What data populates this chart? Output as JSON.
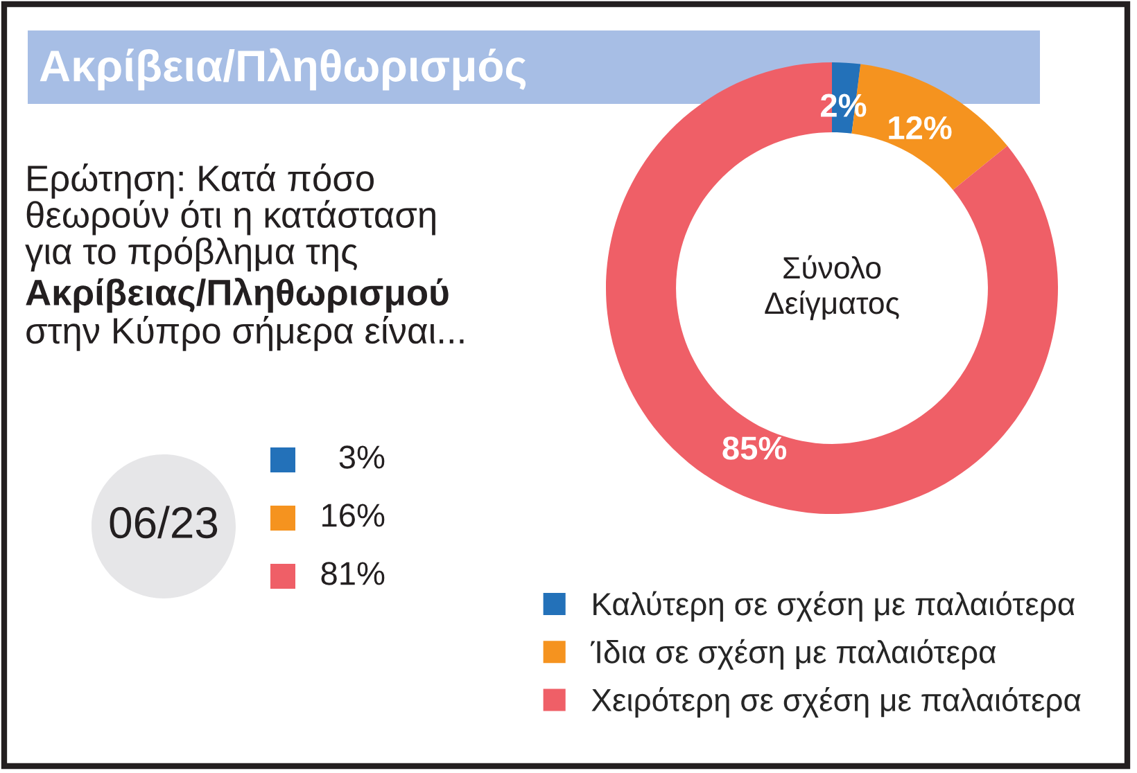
{
  "chart_data": [
    {
      "type": "other",
      "title": "Ακρίβεια/Πληθωρισμός",
      "annotations": [
        "Ερώτηση: Κατά πόσο\nθεωρούν ότι η κατάσταση\nγια το πρόβλημα της",
        "Ακρίβειας/Πληθωρισμού",
        "στην Κύπρο σήμερα είναι..."
      ]
    },
    {
      "type": "donut",
      "categories": [
        "Καλύτερη σε σχέση με παλαιότερα",
        "Ίδια σε σχέση με παλαιότερα",
        "Χειρότερη σε σχέση με παλαιότερα"
      ],
      "values": [
        2,
        12,
        85
      ],
      "colors": [
        "#2371b9",
        "#f5931f",
        "#ef5f67"
      ],
      "value_labels": [
        "2%",
        "12%",
        "85%"
      ],
      "legend": "bottom right",
      "annotations": [
        "Σύνολο\nΔείγματος"
      ]
    },
    {
      "type": "other",
      "title": "06/23",
      "categories": [
        null,
        null,
        null
      ],
      "values": [
        3,
        16,
        81
      ],
      "colors": [
        "#2371b9",
        "#f5931f",
        "#ef5f67"
      ],
      "value_labels": [
        "3%",
        "16%",
        "81%"
      ]
    }
  ]
}
